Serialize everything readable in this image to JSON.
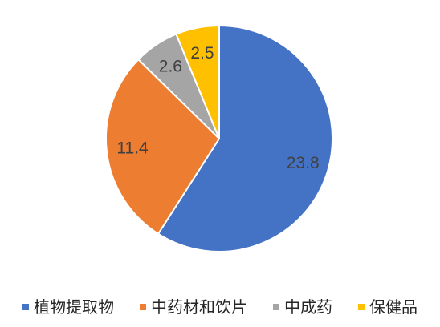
{
  "chart_data": {
    "type": "pie",
    "categories": [
      "植物提取物",
      "中药材和饮片",
      "中成药",
      "保健品"
    ],
    "values": [
      23.8,
      11.4,
      2.6,
      2.5
    ],
    "colors": [
      "#4472C4",
      "#ED7D31",
      "#A5A5A5",
      "#FFC000"
    ],
    "data_labels": true,
    "legend": "bottom"
  }
}
